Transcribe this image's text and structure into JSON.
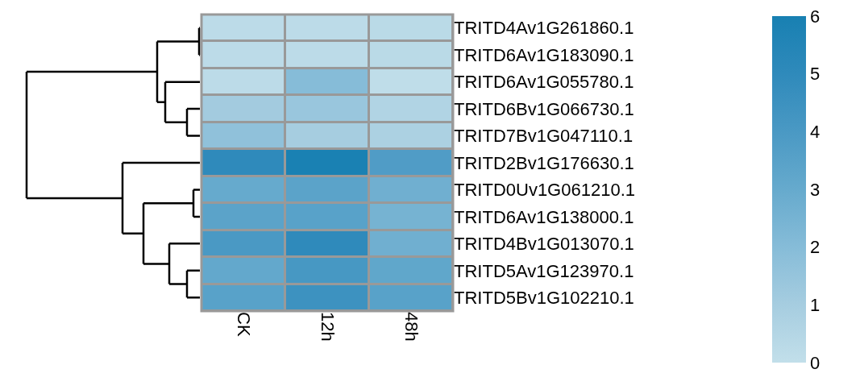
{
  "chart_data": {
    "type": "heatmap",
    "categories": [
      "CK",
      "12h",
      "48h"
    ],
    "y_categories": [
      "TRITD4Av1G261860.1",
      "TRITD6Av1G183090.1",
      "TRITD6Av1G055780.1",
      "TRITD6Bv1G066730.1",
      "TRITD7Bv1G047110.1",
      "TRITD2Bv1G176630.1",
      "TRITD0Uv1G061210.1",
      "TRITD6Av1G138000.1",
      "TRITD4Bv1G013070.1",
      "TRITD5Av1G123970.1",
      "TRITD5Bv1G102210.1"
    ],
    "cells": [
      [
        0.2,
        0.2,
        0.3
      ],
      [
        0.2,
        0.2,
        0.3
      ],
      [
        0.2,
        2.0,
        0.1
      ],
      [
        1.1,
        1.4,
        0.6
      ],
      [
        1.7,
        1.0,
        0.8
      ],
      [
        5.0,
        5.9,
        3.8
      ],
      [
        3.0,
        3.4,
        2.7
      ],
      [
        3.4,
        3.5,
        2.5
      ],
      [
        4.0,
        5.0,
        2.7
      ],
      [
        3.1,
        4.1,
        3.2
      ],
      [
        3.5,
        4.5,
        3.5
      ]
    ],
    "clim": [
      0,
      6
    ],
    "cticks": [
      0,
      1,
      2,
      3,
      4,
      5,
      6
    ]
  }
}
